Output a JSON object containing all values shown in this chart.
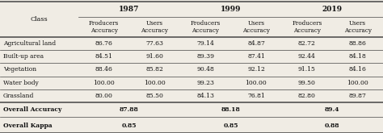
{
  "years": [
    "1987",
    "1999",
    "2019"
  ],
  "col_header_row2": [
    "Producers\nAccuracy",
    "Users\nAccuracy",
    "Producers\nAccuracy",
    "Users\nAccuracy",
    "Producers\nAccuracy",
    "Users\nAccuracy"
  ],
  "rows": [
    [
      "Agricultural land",
      "86.76",
      "77.63",
      "79.14",
      "84.87",
      "82.72",
      "88.86"
    ],
    [
      "Built-up area",
      "84.51",
      "91.60",
      "89.39",
      "87.41",
      "92.44",
      "84.18"
    ],
    [
      "Vegetation",
      "88.46",
      "85.82",
      "90.48",
      "92.12",
      "91.15",
      "84.16"
    ],
    [
      "Water body",
      "100.00",
      "100.00",
      "99.23",
      "100.00",
      "99.50",
      "100.00"
    ],
    [
      "Grassland",
      "80.00",
      "85.50",
      "84.13",
      "76.81",
      "82.80",
      "89.87"
    ]
  ],
  "summary_rows": [
    [
      "Overall Accuracy",
      "87.88",
      "88.18",
      "89.4"
    ],
    [
      "Overall Kappa",
      "0.85",
      "0.85",
      "0.88"
    ]
  ],
  "bg_color": "#f0ece4",
  "line_color": "#444444",
  "text_color": "#111111"
}
